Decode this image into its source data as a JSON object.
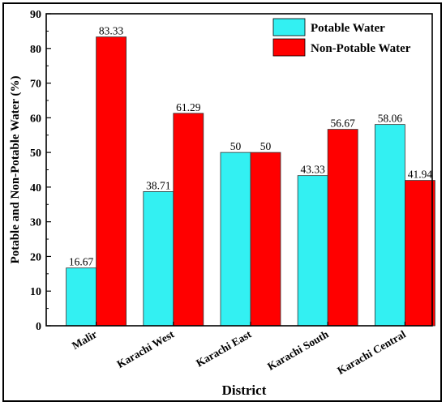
{
  "chart_data": {
    "type": "bar",
    "categories": [
      "Malir",
      "Karachi West",
      "Karachi East",
      "Karachi South",
      "Karachi Central"
    ],
    "series": [
      {
        "name": "Potable Water",
        "values": [
          16.67,
          38.71,
          50,
          43.33,
          58.06
        ],
        "labels": [
          "16.67",
          "38.71",
          "50",
          "43.33",
          "58.06"
        ],
        "color": "#33f0f2"
      },
      {
        "name": "Non-Potable Water",
        "values": [
          83.33,
          61.29,
          50,
          56.67,
          41.94
        ],
        "labels": [
          "83.33",
          "61.29",
          "50",
          "56.67",
          "41.94"
        ],
        "color": "#ff0000"
      }
    ],
    "xlabel": "District",
    "ylabel": "Potable and Non-Potable Water (%)",
    "ylim": [
      0,
      90
    ],
    "yticks": [
      0,
      10,
      20,
      30,
      40,
      50,
      60,
      70,
      80,
      90
    ],
    "grid": false,
    "legend_position": "top-right"
  }
}
